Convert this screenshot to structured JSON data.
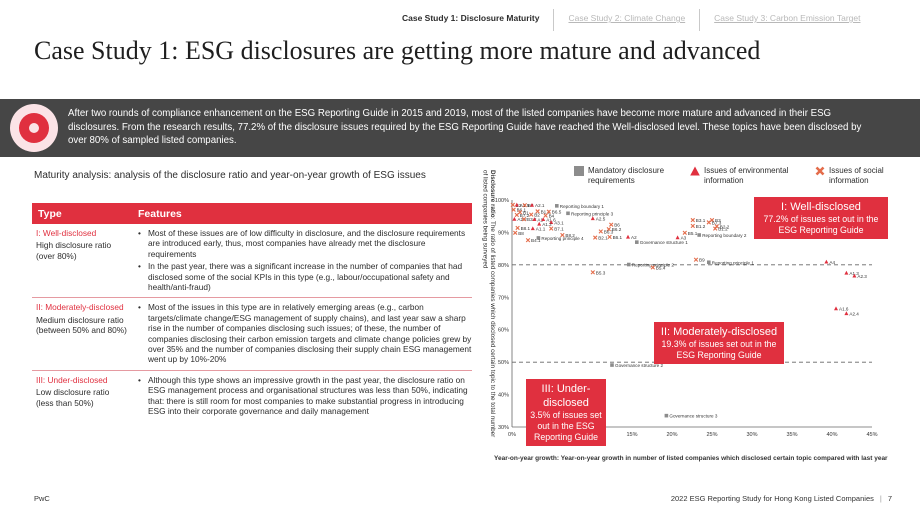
{
  "tabs": [
    {
      "label": "Case Study 1: Disclosure Maturity",
      "active": true
    },
    {
      "label": "Case Study 2: Climate Change",
      "active": false
    },
    {
      "label": "Case Study 3: Carbon Emission Target",
      "active": false
    }
  ],
  "title": "Case Study 1: ESG disclosures are getting more mature and advanced",
  "banner": {
    "icon": "target-icon",
    "text": "After two rounds of compliance enhancement on the ESG Reporting Guide in 2015 and 2019, most of the listed companies have become more mature and advanced in their ESG disclosures. From the research results, 77.2% of the disclosure issues required by the ESG Reporting Guide have reached the Well-disclosed level. These topics have been disclosed by over 80% of sampled listed companies."
  },
  "subtitle": "Maturity analysis: analysis of the disclosure ratio and year-on-year growth of ESG issues",
  "table": {
    "headers": [
      "Type",
      "Features"
    ],
    "rows": [
      {
        "type": "I: Well-disclosed",
        "desc": "High disclosure ratio (over 80%)",
        "features": [
          "Most of these issues are of low difficulty in disclosure, and the disclosure requirements are introduced early, thus, most companies have already met the disclosure requirements",
          "In the past year, there was a significant increase in the number of companies that had disclosed some of the social KPIs in this type (e.g., labour/occupational safety and health/anti-fraud)"
        ]
      },
      {
        "type": "II: Moderately-disclosed",
        "desc": "Medium disclosure ratio (between 50% and 80%)",
        "features": [
          "Most of the issues in this type are in relatively emerging areas (e.g., carbon targets/climate change/ESG management of supply chains), and last year saw a sharp rise in the number of companies disclosing such issues; of these, the number of companies disclosing their carbon emission targets and climate change policies grew by over 35% and the number of companies disclosing their supply chain ESG management went up by 10%-20%"
        ]
      },
      {
        "type": "III: Under-disclosed",
        "desc": "Low disclosure ratio (less than 50%)",
        "features": [
          "Although this type shows an impressive growth in the past year, the disclosure ratio on ESG management process and organisational structures was less than 50%, indicating that: there is still room for most companies to make substantial progress in introducing ESG into their corporate governance and daily management"
        ]
      }
    ]
  },
  "legend": [
    {
      "label": "Mandatory disclosure requirements",
      "marker": "square",
      "color": "#8c8c8c"
    },
    {
      "label": "Issues of environmental information",
      "marker": "triangle",
      "color": "#e0303f"
    },
    {
      "label": "Issues of social information",
      "marker": "cross",
      "color": "#e46c4a"
    }
  ],
  "y_axis_label_bold": "Disclosure ratio",
  "y_axis_label_rest": ": The ratio of listed companies which disclosed certain topic to the total number of listed companies being surveyed",
  "x_axis_label": "Year-on-year growth: Year-on-year growth in number of listed companies which disclosed certain topic compared with last year",
  "boxes": {
    "well": {
      "title": "I: Well-disclosed",
      "text": "77.2% of issues set out in the ESG Reporting Guide"
    },
    "moderate": {
      "title": "II: Moderately-disclosed",
      "text": "19.3% of issues set out in the ESG Reporting Guide"
    },
    "under": {
      "title": "III: Under-disclosed",
      "text": "3.5% of issues set out in the ESG Reporting Guide"
    }
  },
  "chart_data": {
    "type": "scatter",
    "xlabel": "Year-on-year growth: Year-on-year growth in number of listed companies which disclosed certain topic compared with last year",
    "ylabel": "Disclosure ratio: The ratio of listed companies which disclosed certain topic to the total number of listed companies being surveyed",
    "xlim": [
      0,
      45
    ],
    "ylim": [
      30,
      100
    ],
    "x_ticks": [
      "0%",
      "5%",
      "10%",
      "15%",
      "20%",
      "25%",
      "30%",
      "35%",
      "40%",
      "45%"
    ],
    "y_ticks": [
      "30%",
      "40%",
      "50%",
      "60%",
      "70%",
      "80%",
      "90%",
      "100%"
    ],
    "thresholds": [
      80,
      50
    ],
    "points": [
      {
        "label": "B2.3",
        "x": 0.1,
        "y": 98.5,
        "kind": "cross"
      },
      {
        "label": "A1.5",
        "x": 0.6,
        "y": 98.5,
        "kind": "triangle"
      },
      {
        "label": "B7",
        "x": 1.6,
        "y": 98.4,
        "kind": "cross"
      },
      {
        "label": "A2.1",
        "x": 2.5,
        "y": 98.4,
        "kind": "triangle"
      },
      {
        "label": "Reporting boundary 1",
        "x": 5.6,
        "y": 98.2,
        "kind": "square"
      },
      {
        "label": "B6.1",
        "x": 0.2,
        "y": 97.0,
        "kind": "cross"
      },
      {
        "label": "B1.1",
        "x": 3.2,
        "y": 96.5,
        "kind": "cross"
      },
      {
        "label": "B6.5",
        "x": 4.6,
        "y": 96.4,
        "kind": "cross"
      },
      {
        "label": "B1",
        "x": 1.0,
        "y": 96.2,
        "kind": "cross"
      },
      {
        "label": "Reporting principle 3",
        "x": 7.0,
        "y": 95.9,
        "kind": "square"
      },
      {
        "label": "B7.2",
        "x": 0.6,
        "y": 95.4,
        "kind": "cross"
      },
      {
        "label": "B2",
        "x": 2.4,
        "y": 95.5,
        "kind": "cross"
      },
      {
        "label": "B4",
        "x": 4.2,
        "y": 95.2,
        "kind": "cross"
      },
      {
        "label": "A2.2",
        "x": 0.3,
        "y": 94.1,
        "kind": "triangle"
      },
      {
        "label": "B3.2",
        "x": 1.5,
        "y": 94.1,
        "kind": "cross"
      },
      {
        "label": "A1",
        "x": 2.8,
        "y": 94.0,
        "kind": "triangle"
      },
      {
        "label": "A1.6",
        "x": 3.9,
        "y": 94.0,
        "kind": "triangle"
      },
      {
        "label": "A2.5",
        "x": 10.1,
        "y": 94.3,
        "kind": "triangle"
      },
      {
        "label": "A3.1",
        "x": 4.9,
        "y": 93.1,
        "kind": "triangle"
      },
      {
        "label": "A1.2",
        "x": 3.4,
        "y": 92.6,
        "kind": "triangle"
      },
      {
        "label": "B6",
        "x": 12.4,
        "y": 92.4,
        "kind": "cross"
      },
      {
        "label": "B8.1",
        "x": 0.7,
        "y": 91.4,
        "kind": "cross"
      },
      {
        "label": "A1.1",
        "x": 2.6,
        "y": 91.2,
        "kind": "triangle"
      },
      {
        "label": "B7.1",
        "x": 4.9,
        "y": 91.2,
        "kind": "cross"
      },
      {
        "label": "B6.2",
        "x": 12.1,
        "y": 91.0,
        "kind": "cross"
      },
      {
        "label": "B8",
        "x": 0.4,
        "y": 89.9,
        "kind": "cross"
      },
      {
        "label": "B6.3",
        "x": 11.1,
        "y": 90.3,
        "kind": "cross"
      },
      {
        "label": "B8.2",
        "x": 6.3,
        "y": 89.2,
        "kind": "cross"
      },
      {
        "label": "Reporting principle 4",
        "x": 3.3,
        "y": 88.3,
        "kind": "square"
      },
      {
        "label": "B2.1",
        "x": 10.4,
        "y": 88.4,
        "kind": "cross"
      },
      {
        "label": "B6.1",
        "x": 12.2,
        "y": 88.6,
        "kind": "cross"
      },
      {
        "label": "A2",
        "x": 14.5,
        "y": 88.6,
        "kind": "triangle"
      },
      {
        "label": "B4.1",
        "x": 2.0,
        "y": 87.6,
        "kind": "cross"
      },
      {
        "label": "Governance structure 1",
        "x": 15.6,
        "y": 87.0,
        "kind": "square"
      },
      {
        "label": "B3.1",
        "x": 22.6,
        "y": 93.8,
        "kind": "cross"
      },
      {
        "label": "B3",
        "x": 25.0,
        "y": 93.8,
        "kind": "cross"
      },
      {
        "label": "B7.3",
        "x": 24.6,
        "y": 93.1,
        "kind": "cross"
      },
      {
        "label": "B1.2",
        "x": 22.6,
        "y": 92.0,
        "kind": "cross"
      },
      {
        "label": "B2.2",
        "x": 25.6,
        "y": 91.9,
        "kind": "cross"
      },
      {
        "label": "B1.2",
        "x": 25.4,
        "y": 91.2,
        "kind": "cross"
      },
      {
        "label": "B5.1",
        "x": 21.6,
        "y": 89.9,
        "kind": "cross"
      },
      {
        "label": "Reporting boundary 2",
        "x": 23.4,
        "y": 89.2,
        "kind": "square"
      },
      {
        "label": "A4.1",
        "x": 31.9,
        "y": 88.8,
        "kind": "triangle"
      },
      {
        "label": "A3",
        "x": 20.7,
        "y": 88.4,
        "kind": "triangle"
      },
      {
        "label": "B9",
        "x": 23.0,
        "y": 81.6,
        "kind": "cross"
      },
      {
        "label": "Reporting principle 1",
        "x": 24.6,
        "y": 80.8,
        "kind": "square"
      },
      {
        "label": "Reporting principle 2",
        "x": 14.6,
        "y": 80.1,
        "kind": "square"
      },
      {
        "label": "B5.4",
        "x": 17.6,
        "y": 79.2,
        "kind": "cross"
      },
      {
        "label": "B5.3",
        "x": 10.1,
        "y": 77.7,
        "kind": "cross"
      },
      {
        "label": "A4",
        "x": 39.3,
        "y": 80.9,
        "kind": "triangle"
      },
      {
        "label": "A1.3",
        "x": 41.8,
        "y": 77.5,
        "kind": "triangle"
      },
      {
        "label": "A2.3",
        "x": 42.8,
        "y": 76.6,
        "kind": "triangle"
      },
      {
        "label": "A1.6",
        "x": 40.5,
        "y": 66.5,
        "kind": "triangle"
      },
      {
        "label": "A2.4",
        "x": 41.8,
        "y": 65.0,
        "kind": "triangle"
      },
      {
        "label": "B4.2",
        "x": 22.6,
        "y": 55.2,
        "kind": "cross"
      },
      {
        "label": "Governance structure 2",
        "x": 12.5,
        "y": 49.1,
        "kind": "square"
      },
      {
        "label": "Governance structure 3",
        "x": 19.3,
        "y": 33.5,
        "kind": "square"
      }
    ]
  },
  "footer": {
    "left": "PwC",
    "right": "2022 ESG Reporting Study for Hong Kong Listed Companies",
    "page": "7"
  }
}
